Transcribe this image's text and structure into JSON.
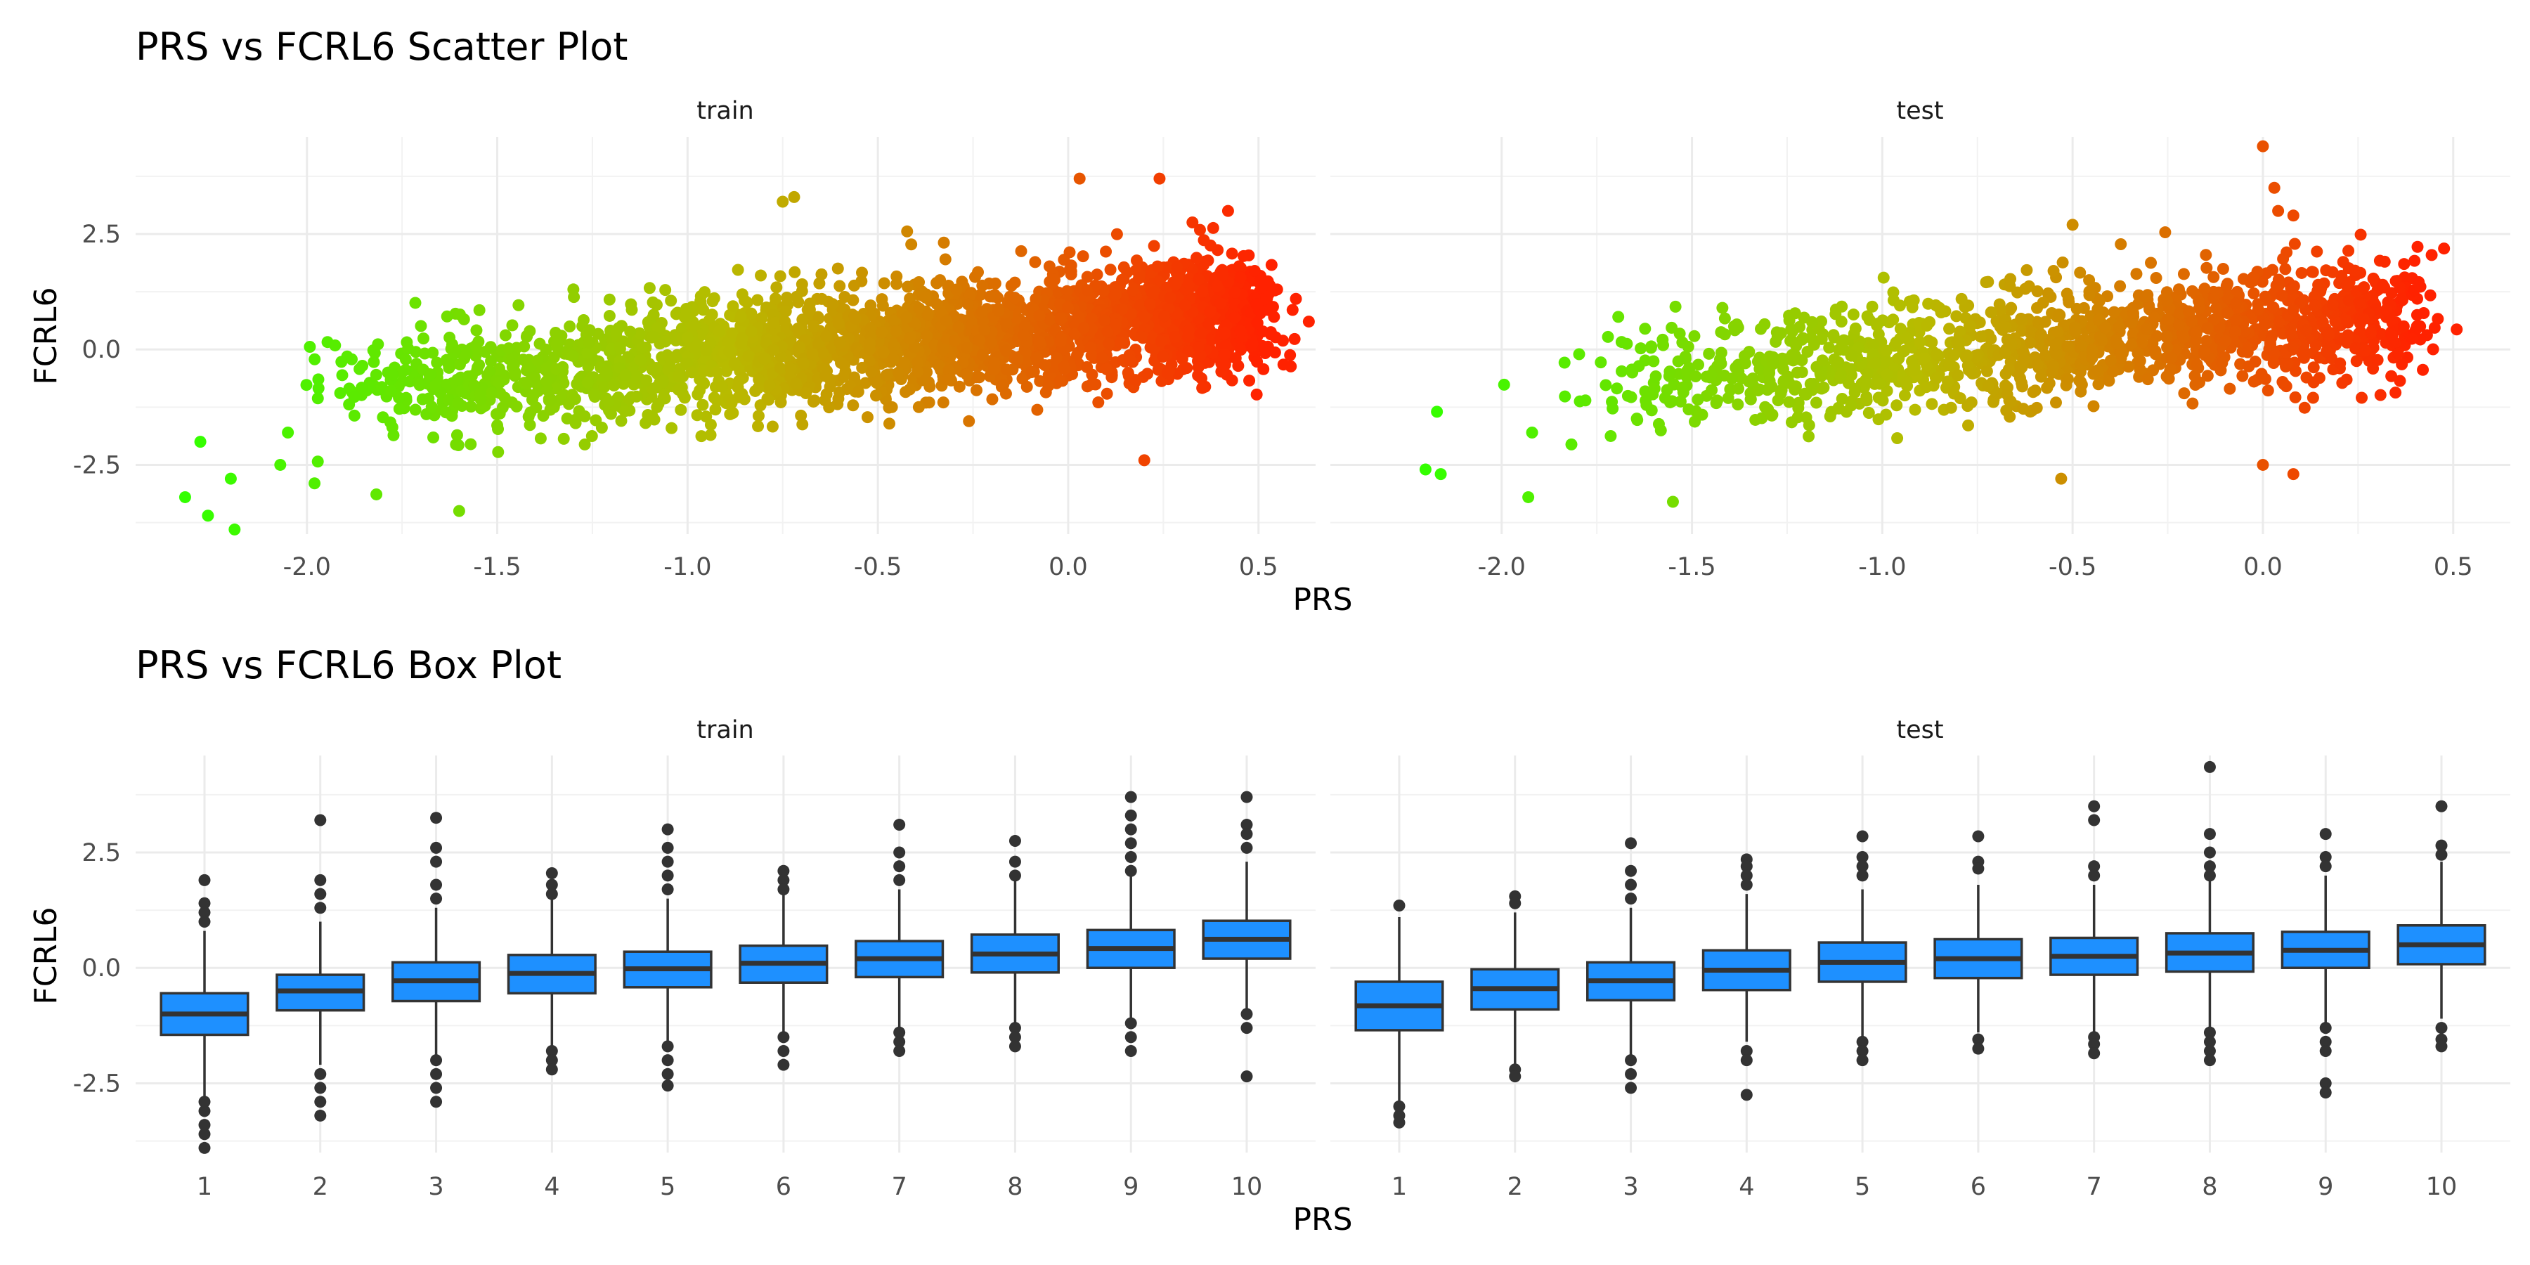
{
  "chart_data": [
    {
      "type": "scatter",
      "title": "PRS vs FCRL6 Scatter Plot",
      "xlabel": "PRS",
      "ylabel": "FCRL6",
      "facets": [
        "train",
        "test"
      ],
      "xlim": [
        -2.45,
        0.65
      ],
      "ylim": [
        -4.0,
        4.6
      ],
      "x_ticks": [
        -2.0,
        -1.5,
        -1.0,
        -0.5,
        0.0,
        0.5
      ],
      "x_tick_labels": [
        "-2.0",
        "-1.5",
        "-1.0",
        "-0.5",
        "0.0",
        "0.5"
      ],
      "y_ticks": [
        -2.5,
        0.0,
        2.5
      ],
      "y_tick_labels": [
        "-2.5",
        "0.0",
        "2.5"
      ],
      "grid": true,
      "color_gradient": {
        "low": "#33ff00",
        "mid": "#b8bb00",
        "high": "#ff2200"
      },
      "point_cloud": {
        "train": {
          "x_range": [
            -2.3,
            0.5
          ],
          "center_slope": 0.72,
          "center_intercept": 0.5,
          "n_points": 2600
        },
        "test": {
          "x_range": [
            -2.2,
            0.4
          ],
          "center_slope": 0.72,
          "center_intercept": 0.5,
          "n_points": 1400
        }
      },
      "series": [
        {
          "facet": "train",
          "x": [
            -2.32,
            -2.26,
            -2.19,
            -2.28,
            -2.2,
            -2.05,
            -2.07,
            -1.97,
            -1.98,
            -1.6,
            -1.3,
            -0.75,
            -0.72,
            0.03,
            0.24,
            0.42,
            0.49,
            0.2,
            0.4
          ],
          "y": [
            -3.2,
            -3.6,
            -3.9,
            -2.0,
            -2.8,
            -1.8,
            -2.5,
            -0.65,
            -2.9,
            -3.5,
            1.3,
            3.2,
            3.3,
            3.7,
            3.7,
            3.0,
            1.7,
            -2.4,
            1.0
          ]
        },
        {
          "facet": "test",
          "x": [
            -2.2,
            -2.16,
            -2.17,
            -1.93,
            -1.92,
            -1.55,
            -1.42,
            -0.85,
            -0.5,
            -0.55,
            0.0,
            0.03,
            0.04,
            0.08,
            0.32,
            0.37,
            0.0,
            0.08,
            -0.53
          ],
          "y": [
            -2.6,
            -2.7,
            -1.35,
            -3.2,
            -1.8,
            -3.3,
            0.9,
            0.9,
            2.7,
            1.7,
            4.4,
            3.5,
            3.0,
            2.9,
            1.9,
            0.5,
            -2.5,
            -2.7,
            -2.8
          ]
        }
      ]
    },
    {
      "type": "box",
      "title": "PRS vs FCRL6 Box Plot",
      "xlabel": "PRS",
      "ylabel": "FCRL6",
      "facets": [
        "train",
        "test"
      ],
      "categories": [
        "1",
        "2",
        "3",
        "4",
        "5",
        "6",
        "7",
        "8",
        "9",
        "10"
      ],
      "ylim": [
        -4.0,
        4.6
      ],
      "y_ticks": [
        -2.5,
        0.0,
        2.5
      ],
      "y_tick_labels": [
        "-2.5",
        "0.0",
        "2.5"
      ],
      "grid": true,
      "fill_color": "#1e90ff",
      "series": [
        {
          "facet": "train",
          "boxes": [
            {
              "q1": -1.45,
              "median": -1.0,
              "q3": -0.55,
              "whisker_low": -2.8,
              "whisker_high": 0.8,
              "outliers": [
                1.9,
                1.4,
                1.2,
                1.0,
                -2.9,
                -3.1,
                -3.4,
                -3.6,
                -3.9
              ]
            },
            {
              "q1": -0.92,
              "median": -0.5,
              "q3": -0.15,
              "whisker_low": -2.1,
              "whisker_high": 1.0,
              "outliers": [
                3.2,
                1.9,
                1.6,
                1.3,
                -2.3,
                -2.6,
                -2.9,
                -3.2
              ]
            },
            {
              "q1": -0.72,
              "median": -0.28,
              "q3": 0.12,
              "whisker_low": -1.95,
              "whisker_high": 1.3,
              "outliers": [
                3.25,
                2.6,
                2.3,
                1.8,
                1.5,
                -2.0,
                -2.3,
                -2.6,
                -2.9
              ]
            },
            {
              "q1": -0.55,
              "median": -0.12,
              "q3": 0.28,
              "whisker_low": -1.7,
              "whisker_high": 1.5,
              "outliers": [
                2.05,
                1.8,
                1.6,
                -1.8,
                -2.0,
                -2.2
              ]
            },
            {
              "q1": -0.42,
              "median": -0.02,
              "q3": 0.35,
              "whisker_low": -1.6,
              "whisker_high": 1.5,
              "outliers": [
                3.0,
                2.6,
                2.3,
                2.0,
                1.7,
                -1.7,
                -2.0,
                -2.3,
                -2.55
              ]
            },
            {
              "q1": -0.32,
              "median": 0.1,
              "q3": 0.48,
              "whisker_low": -1.45,
              "whisker_high": 1.6,
              "outliers": [
                2.1,
                1.9,
                1.7,
                -1.5,
                -1.8,
                -2.1
              ]
            },
            {
              "q1": -0.2,
              "median": 0.2,
              "q3": 0.58,
              "whisker_low": -1.3,
              "whisker_high": 1.7,
              "outliers": [
                3.1,
                2.5,
                2.2,
                1.9,
                -1.4,
                -1.6,
                -1.8
              ]
            },
            {
              "q1": -0.1,
              "median": 0.3,
              "q3": 0.72,
              "whisker_low": -1.2,
              "whisker_high": 1.9,
              "outliers": [
                2.75,
                2.3,
                2.0,
                -1.3,
                -1.5,
                -1.7
              ]
            },
            {
              "q1": 0.0,
              "median": 0.42,
              "q3": 0.82,
              "whisker_low": -1.1,
              "whisker_high": 2.0,
              "outliers": [
                3.7,
                3.3,
                3.0,
                2.7,
                2.4,
                2.1,
                -1.2,
                -1.5,
                -1.8
              ]
            },
            {
              "q1": 0.2,
              "median": 0.62,
              "q3": 1.02,
              "whisker_low": -0.9,
              "whisker_high": 2.3,
              "outliers": [
                3.7,
                3.1,
                2.9,
                2.6,
                -1.0,
                -1.3,
                -2.35
              ]
            }
          ]
        },
        {
          "facet": "test",
          "boxes": [
            {
              "q1": -1.35,
              "median": -0.82,
              "q3": -0.3,
              "whisker_low": -2.9,
              "whisker_high": 1.1,
              "outliers": [
                1.35,
                -3.0,
                -3.2,
                -3.35
              ]
            },
            {
              "q1": -0.9,
              "median": -0.45,
              "q3": -0.03,
              "whisker_low": -2.1,
              "whisker_high": 1.2,
              "outliers": [
                1.55,
                1.4,
                -2.2,
                -2.35
              ]
            },
            {
              "q1": -0.7,
              "median": -0.28,
              "q3": 0.12,
              "whisker_low": -1.9,
              "whisker_high": 1.3,
              "outliers": [
                2.7,
                2.1,
                1.8,
                1.5,
                -2.0,
                -2.3,
                -2.6
              ]
            },
            {
              "q1": -0.48,
              "median": -0.05,
              "q3": 0.38,
              "whisker_low": -1.6,
              "whisker_high": 1.6,
              "outliers": [
                2.35,
                2.2,
                2.0,
                1.8,
                -1.8,
                -2.0,
                -2.75
              ]
            },
            {
              "q1": -0.3,
              "median": 0.12,
              "q3": 0.55,
              "whisker_low": -1.5,
              "whisker_high": 1.7,
              "outliers": [
                2.85,
                2.4,
                2.2,
                2.0,
                -1.6,
                -1.8,
                -2.0
              ]
            },
            {
              "q1": -0.22,
              "median": 0.2,
              "q3": 0.62,
              "whisker_low": -1.4,
              "whisker_high": 1.8,
              "outliers": [
                2.85,
                2.3,
                2.15,
                -1.55,
                -1.75
              ]
            },
            {
              "q1": -0.15,
              "median": 0.25,
              "q3": 0.65,
              "whisker_low": -1.4,
              "whisker_high": 1.8,
              "outliers": [
                3.5,
                3.2,
                2.2,
                2.0,
                -1.5,
                -1.65,
                -1.85
              ]
            },
            {
              "q1": -0.08,
              "median": 0.32,
              "q3": 0.75,
              "whisker_low": -1.3,
              "whisker_high": 1.9,
              "outliers": [
                4.35,
                2.9,
                2.5,
                2.2,
                2.0,
                -1.4,
                -1.6,
                -1.8,
                -2.0
              ]
            },
            {
              "q1": 0.0,
              "median": 0.38,
              "q3": 0.78,
              "whisker_low": -1.2,
              "whisker_high": 2.0,
              "outliers": [
                2.9,
                2.4,
                2.2,
                -1.3,
                -1.6,
                -1.8,
                -2.5,
                -2.7
              ]
            },
            {
              "q1": 0.08,
              "median": 0.5,
              "q3": 0.92,
              "whisker_low": -1.1,
              "whisker_high": 2.3,
              "outliers": [
                3.5,
                2.65,
                2.45,
                -1.3,
                -1.55,
                -1.7
              ]
            }
          ]
        }
      ]
    }
  ]
}
